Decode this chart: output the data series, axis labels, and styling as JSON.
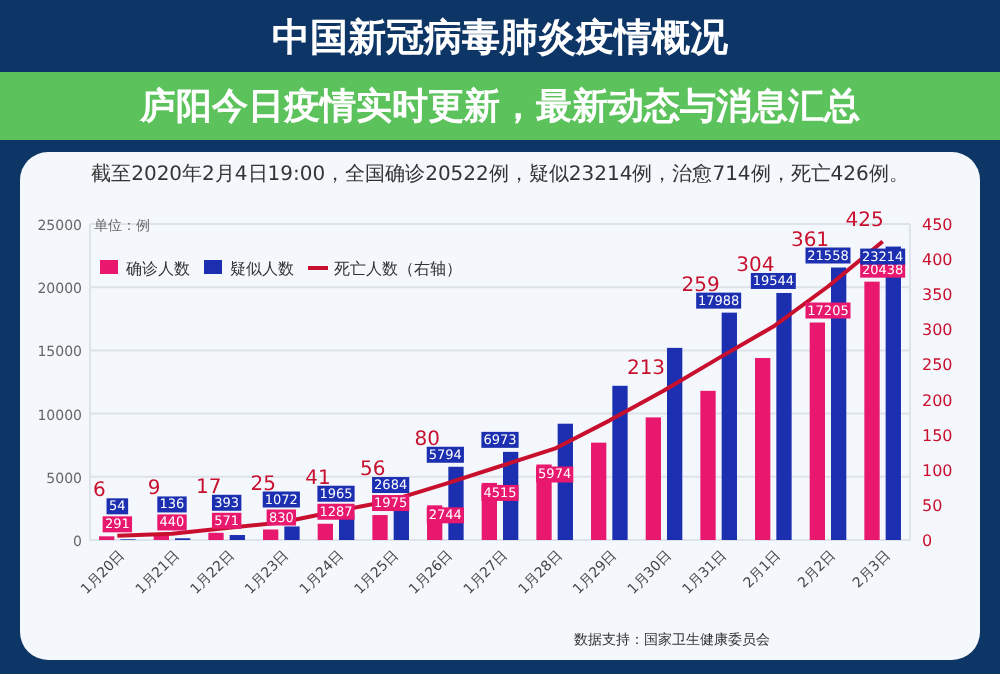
{
  "chart_data": {
    "type": "bar",
    "title": "中国新冠病毒肺炎疫情概况",
    "subtitle": "截至2020年2月4日19:00，全国确诊20522例，疑似23214例，治愈714例，死亡426例。",
    "ylabel": "单位：例",
    "annotations": [
      "庐阳今日疫情实时更新，最新动态与消息汇总",
      "数据支持：国家卫生健康委员会"
    ],
    "categories": [
      "1月20日",
      "1月21日",
      "1月22日",
      "1月23日",
      "1月24日",
      "1月25日",
      "1月26日",
      "1月27日",
      "1月28日",
      "1月29日",
      "1月30日",
      "1月31日",
      "2月1日",
      "2月2日",
      "2月3日"
    ],
    "series": [
      {
        "name": "确诊人数",
        "type": "bar",
        "color": "#e8186e",
        "values": [
          291,
          440,
          571,
          830,
          1287,
          1975,
          2744,
          4515,
          5974,
          7700,
          9700,
          11800,
          14400,
          17205,
          20438
        ],
        "value_labels": [
          "291",
          "440",
          "571",
          "830",
          "1287",
          "1975",
          "2744",
          "4515",
          "5974",
          null,
          null,
          null,
          null,
          "17205",
          "20438"
        ]
      },
      {
        "name": "疑似人数",
        "type": "bar",
        "color": "#1c2fb0",
        "values": [
          54,
          136,
          393,
          1072,
          1965,
          2684,
          5794,
          6973,
          9200,
          12200,
          15200,
          17988,
          19544,
          21558,
          23214
        ],
        "value_labels": [
          "54",
          "136",
          "393",
          "1072",
          "1965",
          "2684",
          "5794",
          "6973",
          null,
          null,
          null,
          "17988",
          "19544",
          "21558",
          "23214"
        ]
      },
      {
        "name": "死亡人数（右轴）",
        "type": "line",
        "axis": "y2",
        "color": "#c8102e",
        "values": [
          6,
          9,
          17,
          25,
          41,
          56,
          80,
          105,
          130,
          170,
          213,
          259,
          304,
          361,
          425
        ],
        "value_labels": [
          "6",
          "9",
          "17",
          "25",
          "41",
          "56",
          "80",
          null,
          null,
          null,
          "213",
          "259",
          "304",
          "361",
          "425"
        ]
      }
    ],
    "ylim": [
      0,
      25000
    ],
    "yticks": [
      0,
      5000,
      10000,
      15000,
      20000,
      25000
    ],
    "y2lim": [
      0,
      450
    ],
    "y2ticks": [
      0,
      50,
      100,
      150,
      200,
      250,
      300,
      350,
      400,
      450
    ],
    "grid": "y",
    "legend": "top left",
    "marker": "none",
    "line_style": "solid"
  }
}
